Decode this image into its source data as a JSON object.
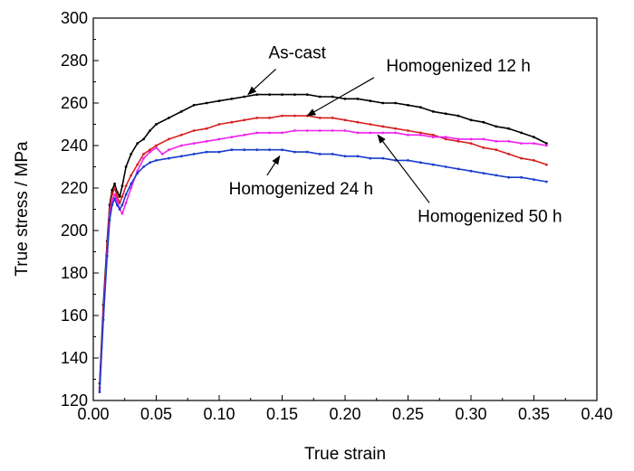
{
  "chart_data": {
    "type": "line",
    "title": "",
    "xlabel": "True strain",
    "ylabel": "True stress / MPa",
    "xlim": [
      0.0,
      0.4
    ],
    "ylim": [
      120,
      300
    ],
    "xticks": [
      0.0,
      0.05,
      0.1,
      0.15,
      0.2,
      0.25,
      0.3,
      0.35,
      0.4
    ],
    "xtick_labels": [
      "0.00",
      "0.05",
      "0.10",
      "0.15",
      "0.20",
      "0.25",
      "0.30",
      "0.35",
      "0.40"
    ],
    "yticks": [
      120,
      140,
      160,
      180,
      200,
      220,
      240,
      260,
      280,
      300
    ],
    "ytick_labels": [
      "120",
      "140",
      "160",
      "180",
      "200",
      "220",
      "240",
      "260",
      "280",
      "300"
    ],
    "grid": false,
    "legend": "none",
    "series": [
      {
        "name": "As-cast",
        "color": "#000000",
        "x": [
          0.005,
          0.008,
          0.011,
          0.013,
          0.015,
          0.017,
          0.019,
          0.021,
          0.023,
          0.026,
          0.03,
          0.035,
          0.04,
          0.045,
          0.05,
          0.06,
          0.07,
          0.08,
          0.09,
          0.1,
          0.11,
          0.12,
          0.13,
          0.14,
          0.15,
          0.16,
          0.17,
          0.18,
          0.19,
          0.2,
          0.21,
          0.22,
          0.23,
          0.24,
          0.25,
          0.26,
          0.27,
          0.28,
          0.29,
          0.3,
          0.31,
          0.32,
          0.33,
          0.34,
          0.35,
          0.36
        ],
        "y": [
          128,
          165,
          195,
          212,
          219,
          222,
          218,
          216,
          221,
          230,
          236,
          241,
          243,
          247,
          250,
          253,
          256,
          259,
          260,
          261,
          262,
          263,
          264,
          264,
          264,
          264,
          264,
          263,
          263,
          262,
          262,
          261,
          260,
          260,
          259,
          258,
          256,
          255,
          254,
          252,
          251,
          249,
          248,
          246,
          244,
          241
        ]
      },
      {
        "name": "Homogenized 12 h",
        "color": "#d62020",
        "x": [
          0.005,
          0.008,
          0.011,
          0.013,
          0.015,
          0.017,
          0.019,
          0.021,
          0.023,
          0.026,
          0.03,
          0.035,
          0.04,
          0.045,
          0.05,
          0.06,
          0.07,
          0.08,
          0.09,
          0.1,
          0.11,
          0.12,
          0.13,
          0.14,
          0.15,
          0.16,
          0.17,
          0.18,
          0.19,
          0.2,
          0.21,
          0.22,
          0.23,
          0.24,
          0.25,
          0.26,
          0.27,
          0.28,
          0.29,
          0.3,
          0.31,
          0.32,
          0.33,
          0.34,
          0.35,
          0.36
        ],
        "y": [
          126,
          162,
          193,
          210,
          217,
          220,
          216,
          213,
          216,
          221,
          226,
          231,
          236,
          238,
          240,
          243,
          245,
          247,
          248,
          250,
          251,
          252,
          253,
          253,
          254,
          254,
          254,
          253,
          253,
          252,
          251,
          250,
          249,
          248,
          247,
          246,
          245,
          243,
          242,
          241,
          239,
          238,
          236,
          234,
          233,
          231
        ]
      },
      {
        "name": "Homogenized 50 h",
        "color": "#ee22ee",
        "x": [
          0.005,
          0.008,
          0.011,
          0.013,
          0.015,
          0.017,
          0.019,
          0.021,
          0.023,
          0.026,
          0.03,
          0.035,
          0.04,
          0.045,
          0.05,
          0.055,
          0.06,
          0.07,
          0.08,
          0.09,
          0.1,
          0.11,
          0.12,
          0.13,
          0.14,
          0.15,
          0.16,
          0.17,
          0.18,
          0.19,
          0.2,
          0.21,
          0.22,
          0.23,
          0.24,
          0.25,
          0.26,
          0.27,
          0.28,
          0.29,
          0.3,
          0.31,
          0.32,
          0.33,
          0.34,
          0.35,
          0.36
        ],
        "y": [
          125,
          160,
          190,
          207,
          214,
          217,
          214,
          210,
          208,
          213,
          220,
          228,
          234,
          237,
          239,
          236,
          238,
          240,
          241,
          242,
          243,
          244,
          245,
          246,
          246,
          246,
          247,
          247,
          247,
          247,
          247,
          246,
          246,
          246,
          246,
          245,
          245,
          244,
          244,
          243,
          243,
          243,
          242,
          242,
          241,
          241,
          240
        ]
      },
      {
        "name": "Homogenized 24 h",
        "color": "#1a3ccc",
        "x": [
          0.005,
          0.008,
          0.011,
          0.013,
          0.015,
          0.017,
          0.019,
          0.021,
          0.023,
          0.026,
          0.03,
          0.035,
          0.04,
          0.045,
          0.05,
          0.06,
          0.07,
          0.08,
          0.09,
          0.1,
          0.11,
          0.12,
          0.13,
          0.14,
          0.15,
          0.16,
          0.17,
          0.18,
          0.19,
          0.2,
          0.21,
          0.22,
          0.23,
          0.24,
          0.25,
          0.26,
          0.27,
          0.28,
          0.29,
          0.3,
          0.31,
          0.32,
          0.33,
          0.34,
          0.35,
          0.36
        ],
        "y": [
          124,
          158,
          188,
          205,
          212,
          215,
          212,
          210,
          212,
          217,
          222,
          227,
          230,
          232,
          233,
          234,
          235,
          236,
          237,
          237,
          238,
          238,
          238,
          238,
          238,
          237,
          237,
          236,
          236,
          235,
          235,
          234,
          234,
          233,
          233,
          232,
          231,
          230,
          229,
          228,
          227,
          226,
          225,
          225,
          224,
          223
        ]
      }
    ],
    "annotations": [
      {
        "text": "As-cast",
        "label_at": [
          0.162,
          281
        ],
        "arrow_from": [
          0.145,
          276
        ],
        "arrow_to": [
          0.123,
          264
        ]
      },
      {
        "text": "Homogenized 12 h",
        "label_at": [
          0.29,
          275
        ],
        "arrow_from": [
          0.223,
          272
        ],
        "arrow_to": [
          0.17,
          254
        ]
      },
      {
        "text": "Homogenized 24 h",
        "label_at": [
          0.165,
          217
        ],
        "arrow_from": [
          0.138,
          226
        ],
        "arrow_to": [
          0.148,
          235
        ]
      },
      {
        "text": "Homogenized 50 h",
        "label_at": [
          0.315,
          204
        ],
        "arrow_from": [
          0.267,
          213
        ],
        "arrow_to": [
          0.226,
          245
        ]
      }
    ]
  }
}
